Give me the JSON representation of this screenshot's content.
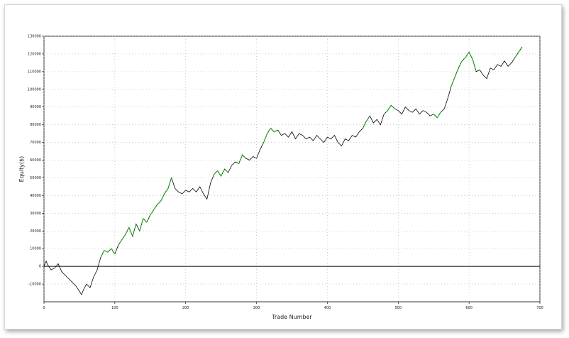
{
  "chart_data": {
    "type": "line",
    "title": "",
    "xlabel": "Trade Number",
    "ylabel": "Equity($)",
    "xlim": [
      0,
      700
    ],
    "ylim": [
      -20000,
      130000
    ],
    "x_ticks": [
      "0",
      "100",
      "200",
      "300",
      "400",
      "500",
      "600",
      "700"
    ],
    "y_ticks": [
      "-10000",
      "0",
      "10000",
      "20000",
      "30000",
      "40000",
      "50000",
      "60000",
      "70000",
      "80000",
      "90000",
      "100000",
      "110000",
      "120000",
      "130000"
    ],
    "grid": true,
    "colors": {
      "line": "#000000",
      "highlight": "#22cc22",
      "zero_line": "#000000",
      "grid": "#b0b0b0"
    },
    "series": [
      {
        "x": [
          0,
          3,
          5,
          10,
          15,
          20,
          25,
          30,
          35,
          40,
          45,
          50,
          53,
          56,
          60,
          65,
          70,
          75,
          80,
          85,
          90,
          95,
          100,
          105,
          110,
          115,
          120,
          125,
          130,
          135,
          140,
          145,
          150,
          155,
          160,
          165,
          170,
          175,
          180,
          185,
          190,
          195,
          200,
          205,
          210,
          215,
          220,
          225,
          230,
          235,
          240,
          245,
          250,
          255,
          260,
          265,
          270,
          275,
          280,
          285,
          290,
          295,
          300,
          305,
          310,
          315,
          320,
          325,
          330,
          335,
          340,
          345,
          350,
          355,
          360,
          365,
          370,
          375,
          380,
          385,
          390,
          395,
          400,
          405,
          410,
          415,
          420,
          425,
          430,
          435,
          440,
          445,
          450,
          455,
          460,
          465,
          470,
          475,
          480,
          485,
          490,
          495,
          500,
          505,
          510,
          515,
          520,
          525,
          530,
          535,
          540,
          545,
          550,
          555,
          560,
          565,
          570,
          575,
          580,
          585,
          590,
          595,
          600,
          605,
          610,
          615,
          620,
          625,
          630,
          635,
          640,
          645,
          650,
          655,
          660,
          665,
          670,
          675
        ],
        "y": [
          0,
          3000,
          1000,
          -2000,
          -1000,
          1500,
          -3000,
          -5000,
          -7000,
          -9000,
          -11000,
          -14000,
          -16000,
          -13000,
          -10000,
          -12000,
          -6000,
          -2000,
          5000,
          9000,
          8000,
          10000,
          7000,
          12000,
          15000,
          18000,
          22000,
          17000,
          24000,
          20000,
          27000,
          25000,
          29000,
          32000,
          35000,
          37000,
          41000,
          44000,
          50000,
          44000,
          42000,
          41000,
          43000,
          42000,
          44000,
          42000,
          45000,
          41000,
          38000,
          47000,
          52000,
          54000,
          51000,
          55000,
          53000,
          57000,
          59000,
          58000,
          63000,
          61000,
          60000,
          62000,
          61000,
          66000,
          70000,
          75000,
          78000,
          76000,
          77000,
          74000,
          75000,
          73000,
          76000,
          72000,
          75000,
          74000,
          72000,
          73000,
          71000,
          74000,
          72000,
          70000,
          73000,
          72000,
          74000,
          70000,
          68000,
          72000,
          71000,
          74000,
          73000,
          76000,
          78000,
          82000,
          85000,
          81000,
          83000,
          80000,
          86000,
          88000,
          91000,
          89000,
          88000,
          86000,
          90000,
          88000,
          87000,
          89000,
          86000,
          88000,
          87000,
          85000,
          86000,
          84000,
          87000,
          89000,
          95000,
          102000,
          107000,
          112000,
          116000,
          118000,
          121000,
          117000,
          110000,
          111000,
          108000,
          106000,
          112000,
          111000,
          114000,
          113000,
          116000,
          113000,
          115000,
          118000,
          121000,
          124000
        ]
      }
    ],
    "highlights": [
      [
        80,
        100
      ],
      [
        105,
        130
      ],
      [
        135,
        180
      ],
      [
        240,
        260
      ],
      [
        275,
        285
      ],
      [
        310,
        330
      ],
      [
        450,
        460
      ],
      [
        480,
        495
      ],
      [
        550,
        560
      ],
      [
        575,
        610
      ],
      [
        665,
        678
      ]
    ]
  }
}
